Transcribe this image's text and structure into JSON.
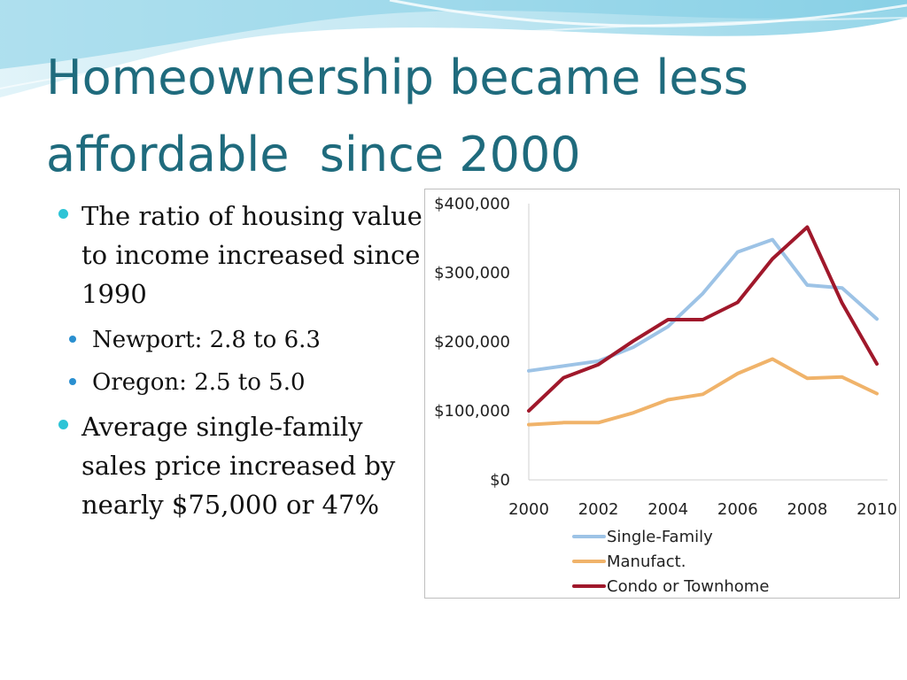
{
  "slide": {
    "title_lines": [
      "Homeownership became less",
      "affordable  since 2000"
    ],
    "bullets": [
      {
        "text": "The ratio of housing value to income increased since 1990",
        "sub": [
          "Newport: 2.8 to 6.3",
          "Oregon: 2.5 to 5.0"
        ]
      },
      {
        "text": "Average single-family sales price increased by nearly $75,000 or 47%"
      }
    ]
  },
  "colors": {
    "title": "#1f6b7d",
    "bullet": "#2ec4d6"
  },
  "chart_data": {
    "type": "line",
    "x": [
      2000,
      2001,
      2002,
      2003,
      2004,
      2005,
      2006,
      2007,
      2008,
      2009,
      2010
    ],
    "x_tick_labels": [
      "2000",
      "2002",
      "2004",
      "2006",
      "2008",
      "2010"
    ],
    "y_tick_labels": [
      "$0",
      "$100,000",
      "$200,000",
      "$300,000",
      "$400,000"
    ],
    "ylim": [
      0,
      400000
    ],
    "grid": false,
    "legend_position": "bottom",
    "series": [
      {
        "name": "Single-Family",
        "color": "#9dc3e6",
        "values": [
          158000,
          165000,
          172000,
          192000,
          222000,
          270000,
          330000,
          348000,
          282000,
          278000,
          233000
        ]
      },
      {
        "name": "Manufact.",
        "color": "#f0b36a",
        "values": [
          80000,
          83000,
          83000,
          97000,
          116000,
          124000,
          154000,
          175000,
          147000,
          149000,
          125000
        ]
      },
      {
        "name": "Condo or Townhome",
        "color": "#a0182b",
        "values": [
          100000,
          148000,
          167000,
          201000,
          232000,
          232000,
          257000,
          320000,
          366000,
          256000,
          168000
        ]
      }
    ]
  }
}
